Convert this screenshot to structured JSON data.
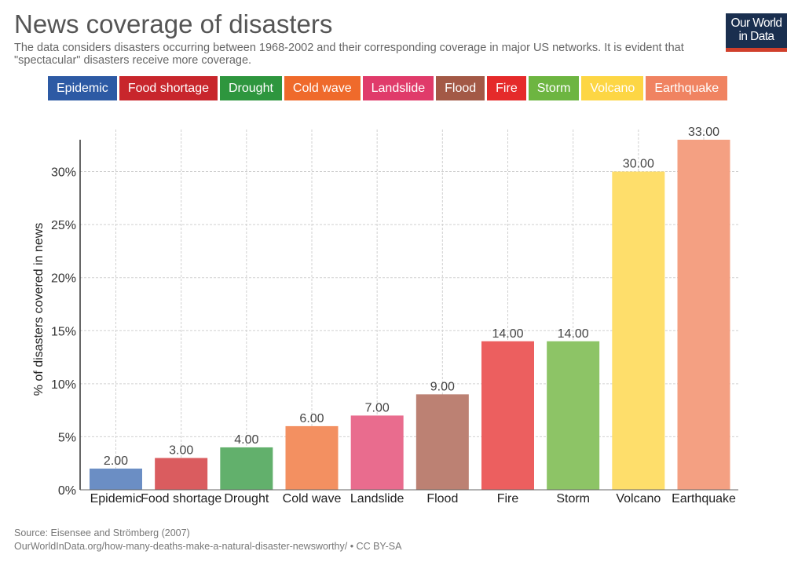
{
  "header": {
    "title": "News coverage of disasters",
    "subtitle": "The data considers disasters occurring between 1968-2002 and their corresponding coverage in major US networks. It is evident that \"spectacular\" disasters receive more coverage."
  },
  "logo": {
    "line1": "Our World",
    "line2": "in Data"
  },
  "legend": [
    {
      "label": "Epidemic",
      "color": "#2d5aa4"
    },
    {
      "label": "Food shortage",
      "color": "#c8262c"
    },
    {
      "label": "Drought",
      "color": "#2e963e"
    },
    {
      "label": "Cold wave",
      "color": "#ef6a2b"
    },
    {
      "label": "Landslide",
      "color": "#e03b6a"
    },
    {
      "label": "Flood",
      "color": "#a35946"
    },
    {
      "label": "Fire",
      "color": "#e52a2a"
    },
    {
      "label": "Storm",
      "color": "#6db541"
    },
    {
      "label": "Volcano",
      "color": "#fdd644"
    },
    {
      "label": "Earthquake",
      "color": "#f08361"
    }
  ],
  "chart_data": {
    "type": "bar",
    "categories": [
      "Epidemic",
      "Food shortage",
      "Drought",
      "Cold wave",
      "Landslide",
      "Flood",
      "Fire",
      "Storm",
      "Volcano",
      "Earthquake"
    ],
    "values": [
      2,
      3,
      4,
      6,
      7,
      9,
      14,
      14,
      30,
      33
    ],
    "value_labels": [
      "2.00",
      "3.00",
      "4.00",
      "6.00",
      "7.00",
      "9.00",
      "14.00",
      "14.00",
      "30.00",
      "33.00"
    ],
    "colors": [
      "#6b8ec4",
      "#da5c5f",
      "#62b06c",
      "#f39061",
      "#e96c8e",
      "#bc8173",
      "#ec5f5f",
      "#8dc466",
      "#fede6b",
      "#f4a082"
    ],
    "ylabel": "% of disasters covered in news",
    "yticks": [
      0,
      5,
      10,
      15,
      20,
      25,
      30
    ],
    "ytick_labels": [
      "0%",
      "5%",
      "10%",
      "15%",
      "20%",
      "25%",
      "30%"
    ],
    "ylim": [
      0,
      33
    ],
    "grid": true,
    "legend_position": "top"
  },
  "footer": {
    "source": "Source: Eisensee and Strömberg (2007)",
    "url": "OurWorldInData.org/how-many-deaths-make-a-natural-disaster-newsworthy/ • CC BY-SA"
  }
}
